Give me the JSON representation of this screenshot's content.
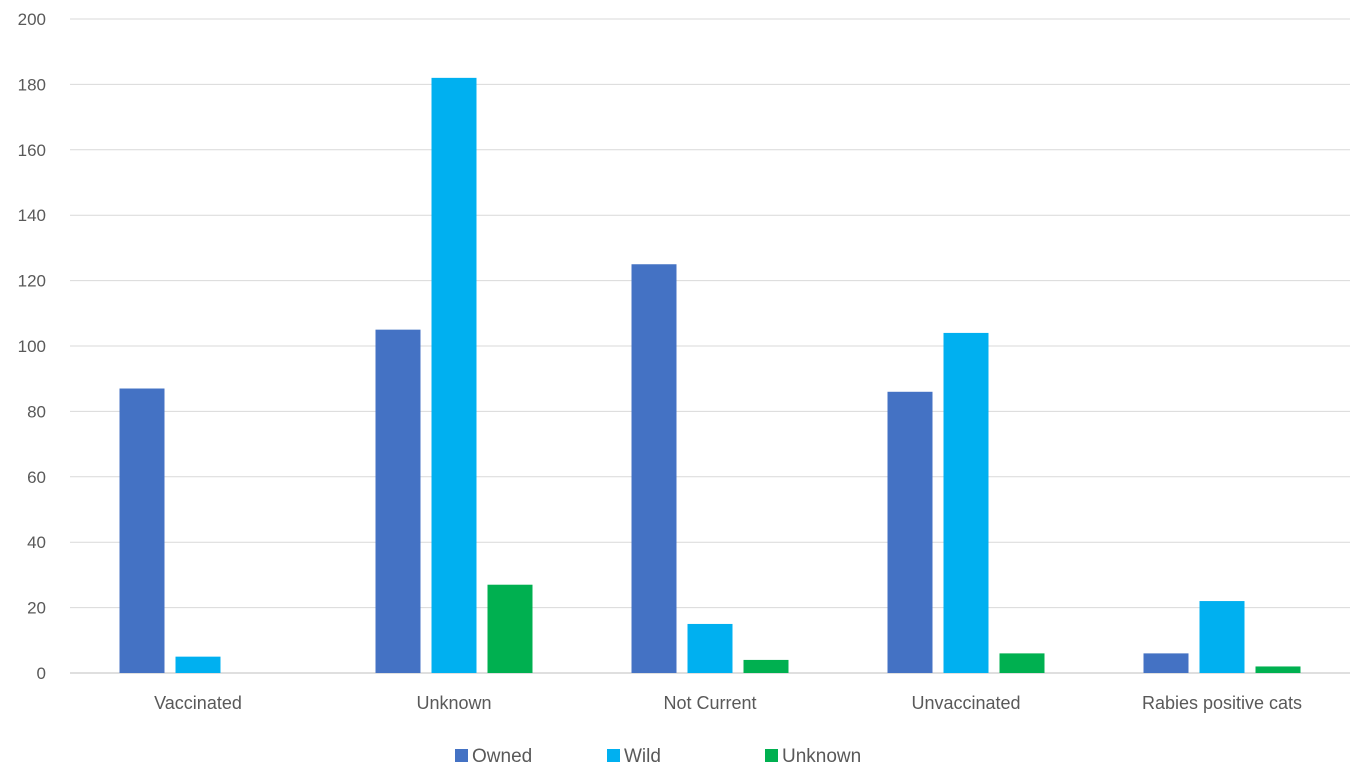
{
  "chart_data": {
    "type": "bar",
    "categories": [
      "Vaccinated",
      "Unknown",
      "Not Current",
      "Unvaccinated",
      "Rabies positive cats"
    ],
    "series": [
      {
        "name": "Owned",
        "color": "#4472C4",
        "values": [
          87,
          105,
          125,
          86,
          6
        ]
      },
      {
        "name": "Wild",
        "color": "#00B0F0",
        "values": [
          5,
          182,
          15,
          104,
          22
        ]
      },
      {
        "name": "Unknown",
        "color": "#00B050",
        "values": [
          0,
          27,
          4,
          6,
          2
        ]
      }
    ],
    "ylim": [
      0,
      200
    ],
    "yticks": [
      0,
      20,
      40,
      60,
      80,
      100,
      120,
      140,
      160,
      180,
      200
    ],
    "grid": true,
    "legend": "bottom"
  }
}
